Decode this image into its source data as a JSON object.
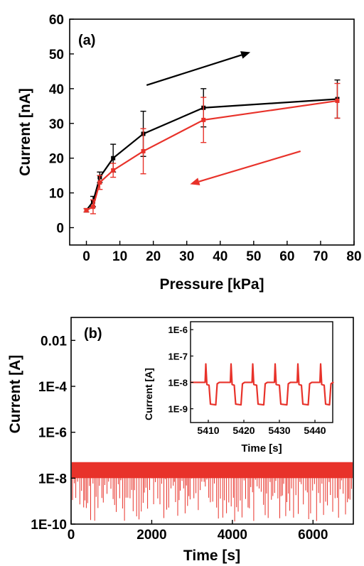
{
  "chart_data": [
    {
      "type": "line",
      "panel_label": "(a)",
      "xlabel": "Pressure [kPa]",
      "ylabel": "Current [nA]",
      "xlim": [
        -5,
        80
      ],
      "ylim": [
        -5,
        60
      ],
      "x_ticks": [
        0,
        10,
        20,
        30,
        40,
        50,
        60,
        70,
        80
      ],
      "y_ticks": [
        0,
        10,
        20,
        30,
        40,
        50,
        60
      ],
      "colors": {
        "loading": "#000000",
        "unloading": "#e8322a"
      },
      "series": [
        {
          "key": "loading",
          "x": [
            0,
            2,
            4,
            8,
            17,
            35,
            75
          ],
          "y": [
            5,
            7.5,
            14.5,
            20,
            27,
            34.5,
            37
          ],
          "err": [
            0.5,
            1.5,
            1.5,
            4,
            6.5,
            5.5,
            5.5
          ]
        },
        {
          "key": "unloading",
          "x": [
            0,
            2,
            4,
            8,
            17,
            35,
            75
          ],
          "y": [
            5,
            6,
            13,
            16.5,
            22,
            31,
            36.5
          ],
          "err": [
            0.5,
            2,
            2,
            2,
            6.5,
            6.5,
            5
          ]
        }
      ],
      "arrows": [
        {
          "key": "loading",
          "from": [
            18,
            41
          ],
          "to": [
            49,
            50.5
          ]
        },
        {
          "key": "unloading",
          "from": [
            64,
            22
          ],
          "to": [
            31,
            12.5
          ]
        }
      ]
    },
    {
      "type": "line",
      "panel_label": "(b)",
      "xlabel": "Time [s]",
      "ylabel": "Current [A]",
      "xlim": [
        0,
        7000
      ],
      "y_scale": "log",
      "ylim": [
        1e-10,
        0.1
      ],
      "x_ticks": [
        0,
        2000,
        4000,
        6000
      ],
      "y_ticks": [
        "0.01",
        "1E-4",
        "1E-6",
        "1E-8",
        "1E-10"
      ],
      "y_tick_values": [
        0.01,
        0.0001,
        1e-06,
        1e-08,
        1e-10
      ],
      "signal": {
        "color": "#e8322a",
        "high_level": 4e-08,
        "band_top": 5e-08,
        "band_bottom": 1e-08,
        "dip_min": 1e-10
      },
      "inset": {
        "xlabel": "Time [s]",
        "ylabel": "Current [A]",
        "xlim": [
          5405,
          5445
        ],
        "x_ticks": [
          5410,
          5420,
          5430,
          5440
        ],
        "y_ticks": [
          "1E-6",
          "1E-7",
          "1E-8",
          "1E-9"
        ],
        "y_tick_values": [
          1e-06,
          1e-07,
          1e-08,
          1e-09
        ],
        "ylim": [
          3e-10,
          2e-06
        ],
        "pulses": [
          {
            "spike": 5409.3,
            "low_start": 5410.2,
            "low_end": 5412.5
          },
          {
            "spike": 5416.4,
            "low_start": 5417.3,
            "low_end": 5419.6
          },
          {
            "spike": 5422.5,
            "low_start": 5423.6,
            "low_end": 5426
          },
          {
            "spike": 5428.8,
            "low_start": 5430,
            "low_end": 5432.5
          },
          {
            "spike": 5435.2,
            "low_start": 5436.2,
            "low_end": 5438.5
          },
          {
            "spike": 5441.6,
            "low_start": 5442.6,
            "low_end": 5444.5
          }
        ],
        "base_level": 1e-08,
        "low_level": 1.5e-09,
        "spike_level": 5e-08
      }
    }
  ]
}
